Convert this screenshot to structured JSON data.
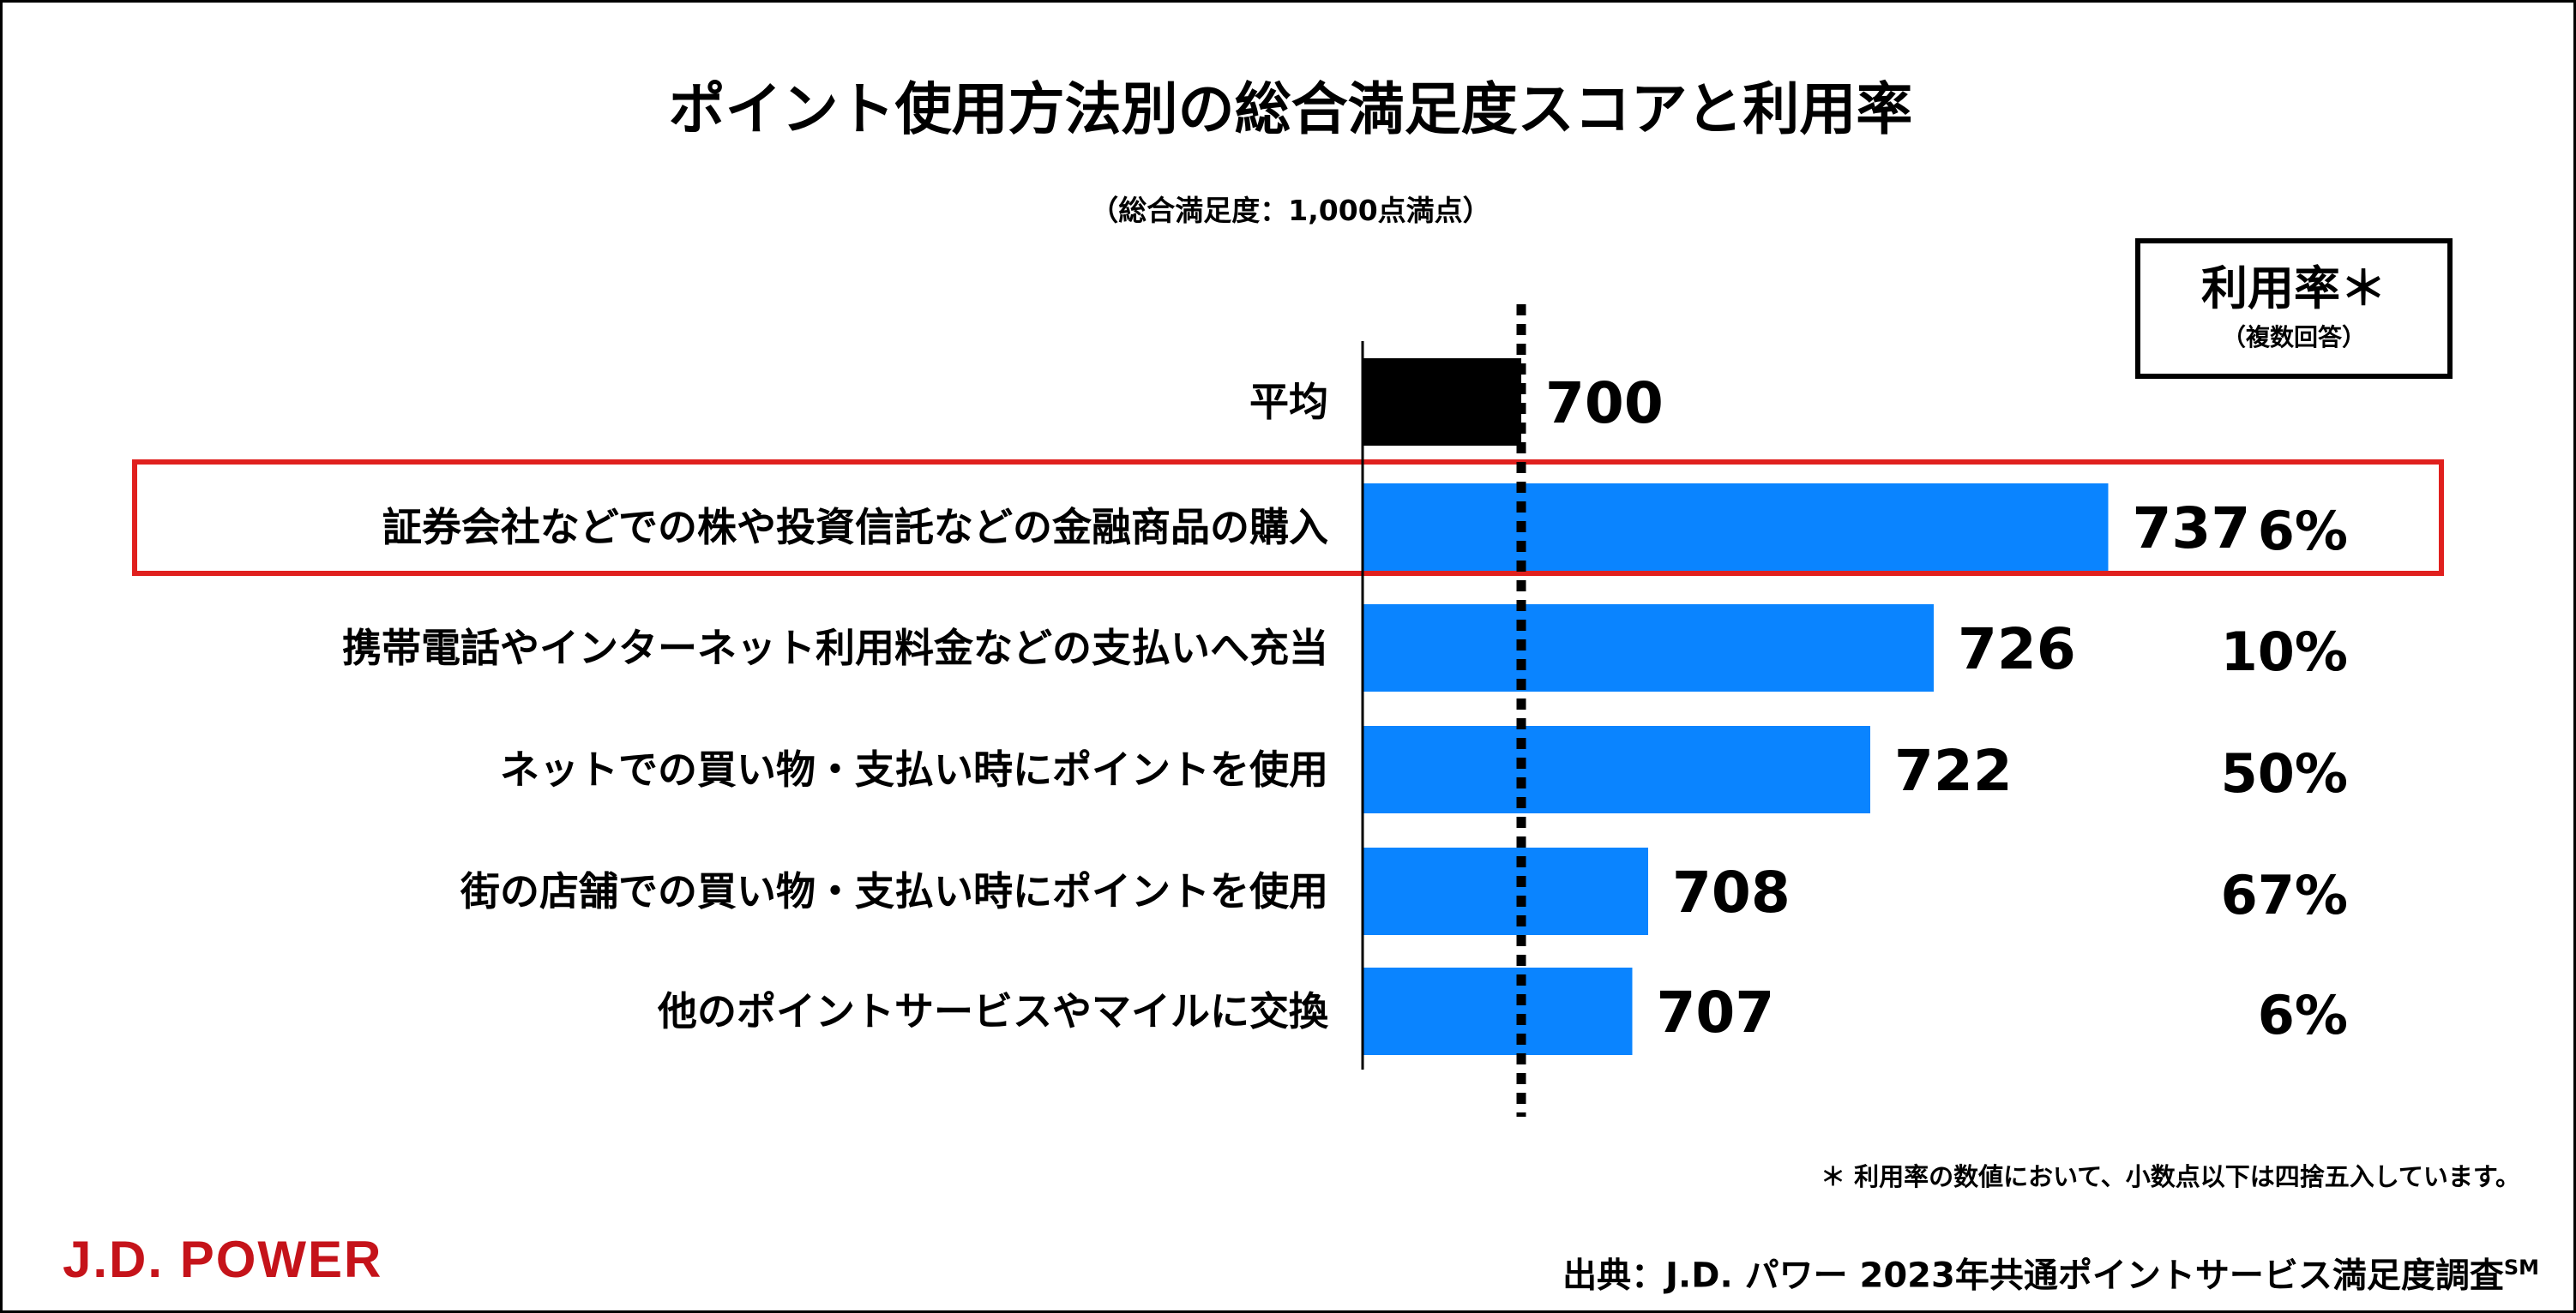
{
  "title": "ポイント使用方法別の総合満足度スコアと利用率",
  "subtitle": "（総合満足度：1,000点満点）",
  "rate_header": {
    "title": "利用率＊",
    "subtitle": "（複数回答）"
  },
  "chart_data": {
    "type": "bar",
    "orientation": "horizontal",
    "title": "ポイント使用方法別の総合満足度スコアと利用率",
    "subtitle": "（総合満足度：1,000点満点）",
    "categories": [
      "平均",
      "証券会社などでの株や投資信託などの金融商品の購入",
      "携帯電話やインターネット利用料金などの支払いへ充当",
      "ネットでの買い物・支払い時にポイントを使用",
      "街の店舗での買い物・支払い時にポイントを使用",
      "他のポイントサービスやマイルに交換"
    ],
    "values": [
      700,
      737,
      726,
      722,
      708,
      707
    ],
    "value_labels": [
      "700",
      "737",
      "726",
      "722",
      "708",
      "707"
    ],
    "usage_rates": [
      "",
      "6%",
      "10%",
      "50%",
      "67%",
      "6%"
    ],
    "reference_line": {
      "value": 700,
      "style": "dotted"
    },
    "highlighted_category": "証券会社などでの株や投資信託などの金融商品の購入",
    "bar_colors": {
      "average": "#000000",
      "default": "#0a84ff"
    },
    "highlight_color": "#e0201e",
    "legend": "none",
    "grid": false
  },
  "footnote": "＊ 利用率の数値において、小数点以下は四捨五入しています。",
  "logo": "J.D. POWER",
  "source": {
    "text": "出典：J.D. パワー 2023年共通ポイントサービス満足度調査",
    "mark": "SM"
  }
}
